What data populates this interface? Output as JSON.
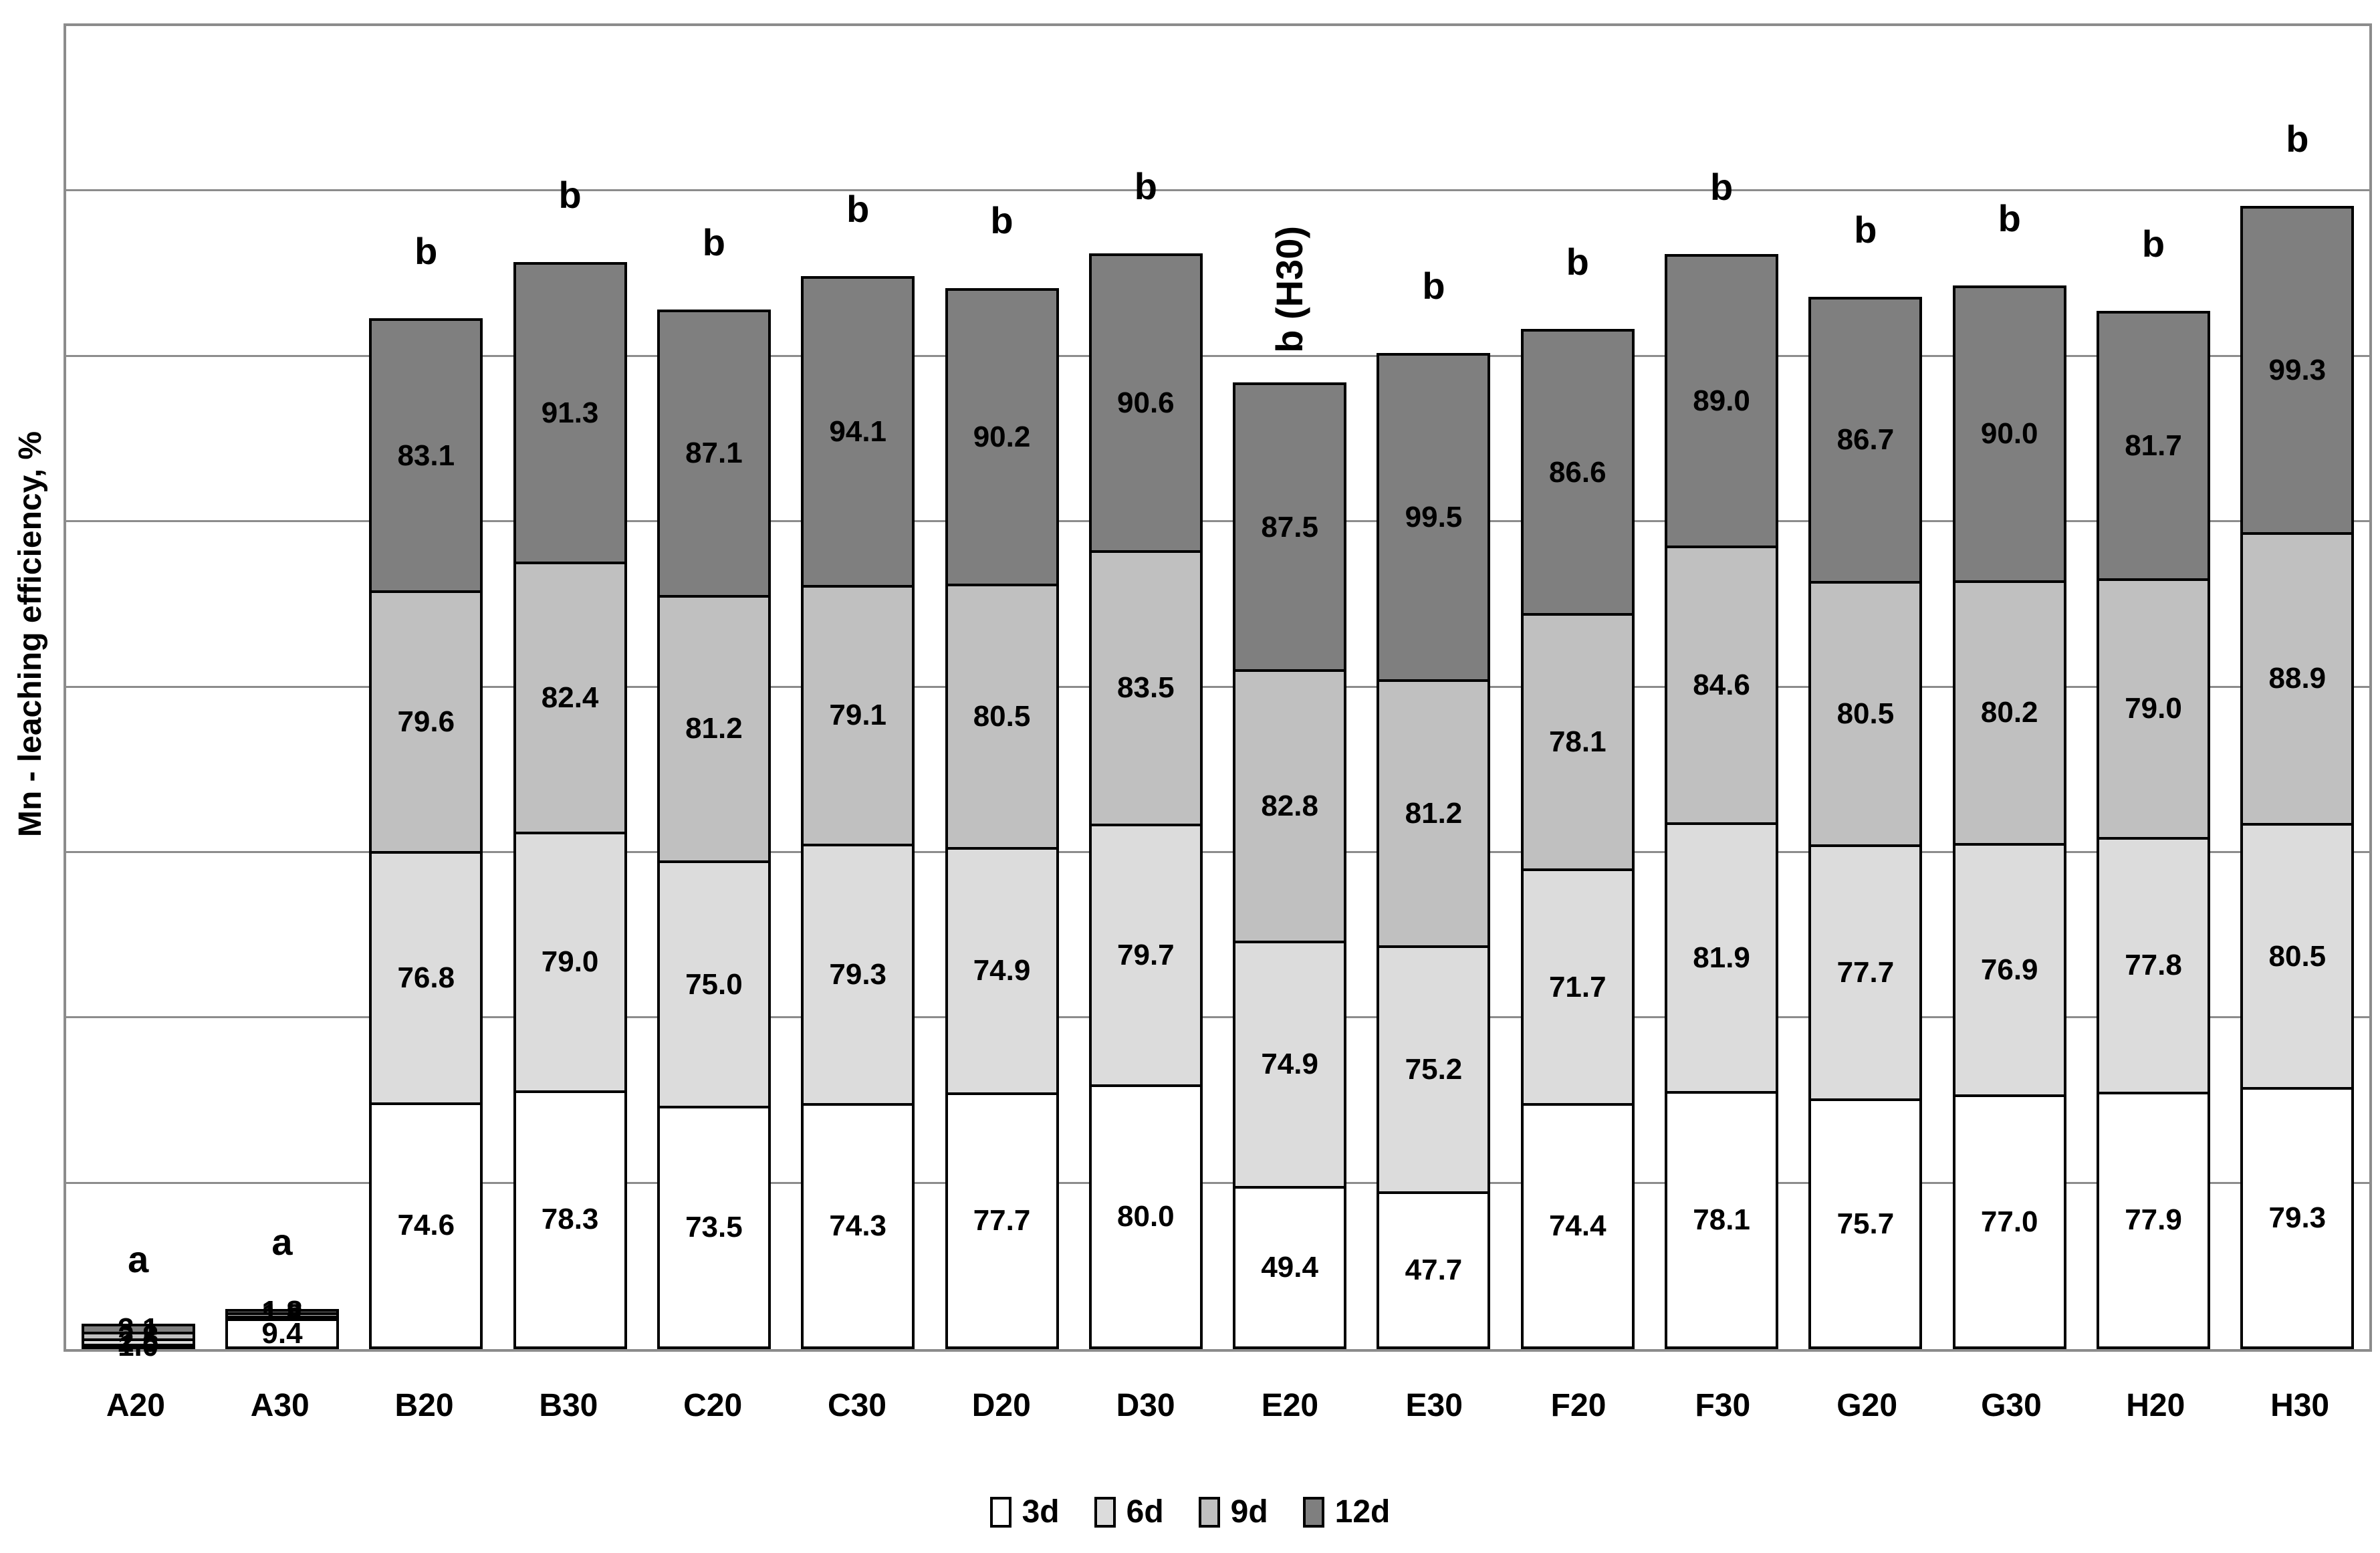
{
  "chart_data": {
    "type": "bar",
    "stacked": true,
    "title": "",
    "xlabel": "",
    "ylabel": "Mn - leaching efficiency, %",
    "ylim": [
      0,
      400
    ],
    "gridline_step": 50,
    "grid": true,
    "y_tick_labels_visible": false,
    "legend_position": "bottom",
    "value_label_format": "one_decimal",
    "categories": [
      "A20",
      "A30",
      "B20",
      "B30",
      "C20",
      "C30",
      "D20",
      "D30",
      "E20",
      "E30",
      "F20",
      "F30",
      "G20",
      "G30",
      "H20",
      "H30"
    ],
    "series": [
      {
        "name": "3d",
        "color": "#ffffff",
        "values": [
          1.0,
          9.4,
          74.6,
          78.3,
          73.5,
          74.3,
          77.7,
          80.0,
          49.4,
          47.7,
          74.4,
          78.1,
          75.7,
          77.0,
          77.9,
          79.3
        ]
      },
      {
        "name": "6d",
        "color": "#dcdcdc",
        "values": [
          2.5,
          1.6,
          76.8,
          79.0,
          75.0,
          79.3,
          74.9,
          79.7,
          74.9,
          75.2,
          71.7,
          81.9,
          77.7,
          76.9,
          77.8,
          80.5
        ]
      },
      {
        "name": "9d",
        "color": "#c0c0c0",
        "values": [
          2.8,
          1.8,
          79.6,
          82.4,
          81.2,
          79.1,
          80.5,
          83.5,
          82.8,
          81.2,
          78.1,
          84.6,
          80.5,
          80.2,
          79.0,
          88.9
        ]
      },
      {
        "name": "12d",
        "color": "#7f7f7f",
        "values": [
          3.1,
          1.8,
          83.1,
          91.3,
          87.1,
          94.1,
          90.2,
          90.6,
          87.5,
          99.5,
          86.6,
          89.0,
          86.7,
          90.0,
          81.7,
          99.3
        ]
      }
    ],
    "annotations": [
      {
        "category": "A20",
        "text": "a",
        "rotated": false
      },
      {
        "category": "A30",
        "text": "a",
        "rotated": false
      },
      {
        "category": "B20",
        "text": "b",
        "rotated": false
      },
      {
        "category": "B30",
        "text": "b",
        "rotated": false
      },
      {
        "category": "C20",
        "text": "b",
        "rotated": false
      },
      {
        "category": "C30",
        "text": "b",
        "rotated": false
      },
      {
        "category": "D20",
        "text": "b",
        "rotated": false
      },
      {
        "category": "D30",
        "text": "b",
        "rotated": false
      },
      {
        "category": "E20",
        "text": "b (H30)",
        "rotated": true
      },
      {
        "category": "E30",
        "text": "b",
        "rotated": false
      },
      {
        "category": "F20",
        "text": "b",
        "rotated": false
      },
      {
        "category": "F30",
        "text": "b",
        "rotated": false
      },
      {
        "category": "G20",
        "text": "b",
        "rotated": false
      },
      {
        "category": "G30",
        "text": "b",
        "rotated": false
      },
      {
        "category": "H20",
        "text": "b",
        "rotated": false
      },
      {
        "category": "H30",
        "text": "b",
        "rotated": false
      }
    ],
    "label_legibility": {
      "A20": "segment labels overlap, illegible in source image; segment values estimated from bar height",
      "A30": "segment labels overlap, only 9.4 legible; remaining segment values estimated from bar height"
    },
    "colors": {
      "grid": "#8c8c8c",
      "bar_border": "#000000",
      "text": "#000000"
    }
  }
}
